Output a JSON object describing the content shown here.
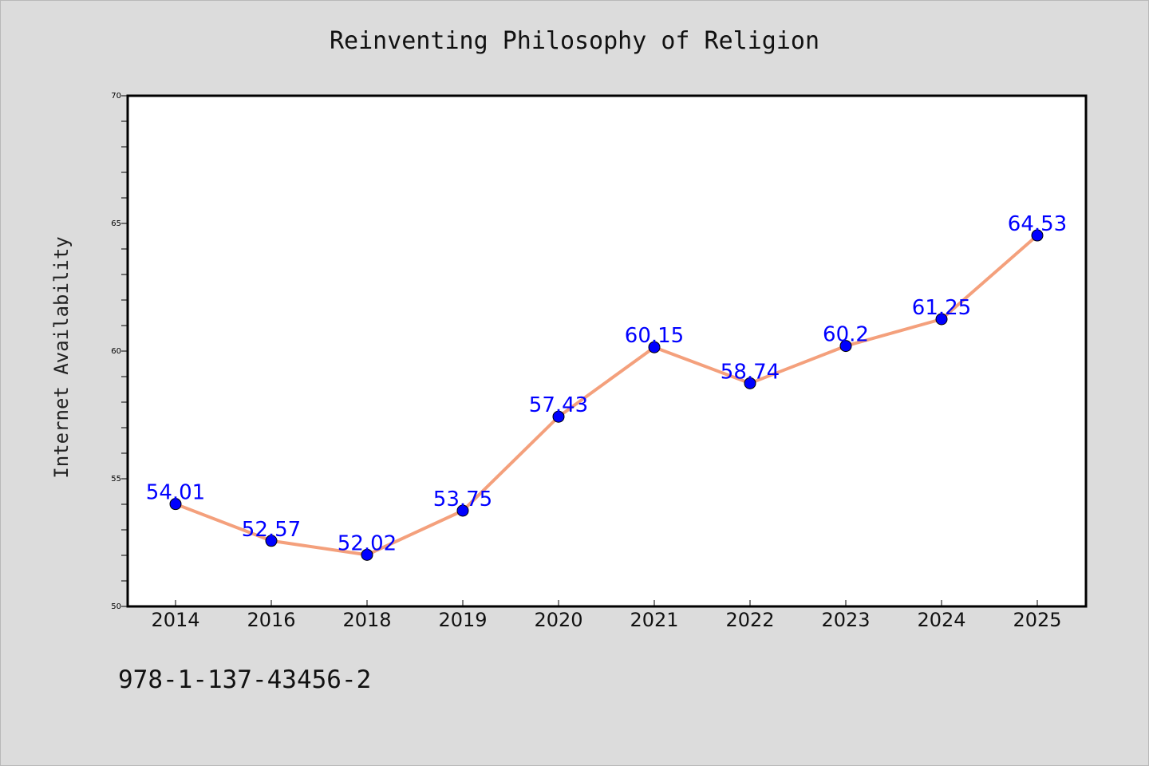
{
  "chart_data": {
    "type": "line",
    "title": "Reinventing Philosophy of Religion",
    "xlabel": "",
    "ylabel": "Internet Availability",
    "categories": [
      "2014",
      "2016",
      "2018",
      "2019",
      "2020",
      "2021",
      "2022",
      "2023",
      "2024",
      "2025"
    ],
    "series": [
      {
        "values": [
          54.01,
          52.57,
          52.02,
          53.75,
          57.43,
          60.15,
          58.74,
          60.2,
          61.25,
          64.53
        ],
        "labels": [
          "54.01",
          "52.57",
          "52.02",
          "53.75",
          "57.43",
          "60.15",
          "58.74",
          "60.2",
          "61.25",
          "64.53"
        ],
        "line_color": "#f4a07c",
        "marker_color": "#0000ff"
      }
    ],
    "ylim": [
      50,
      70
    ],
    "yticks": [
      50,
      55,
      60,
      65,
      70
    ],
    "grid": false,
    "legend": "none"
  },
  "footer": {
    "isbn": "978-1-137-43456-2"
  }
}
